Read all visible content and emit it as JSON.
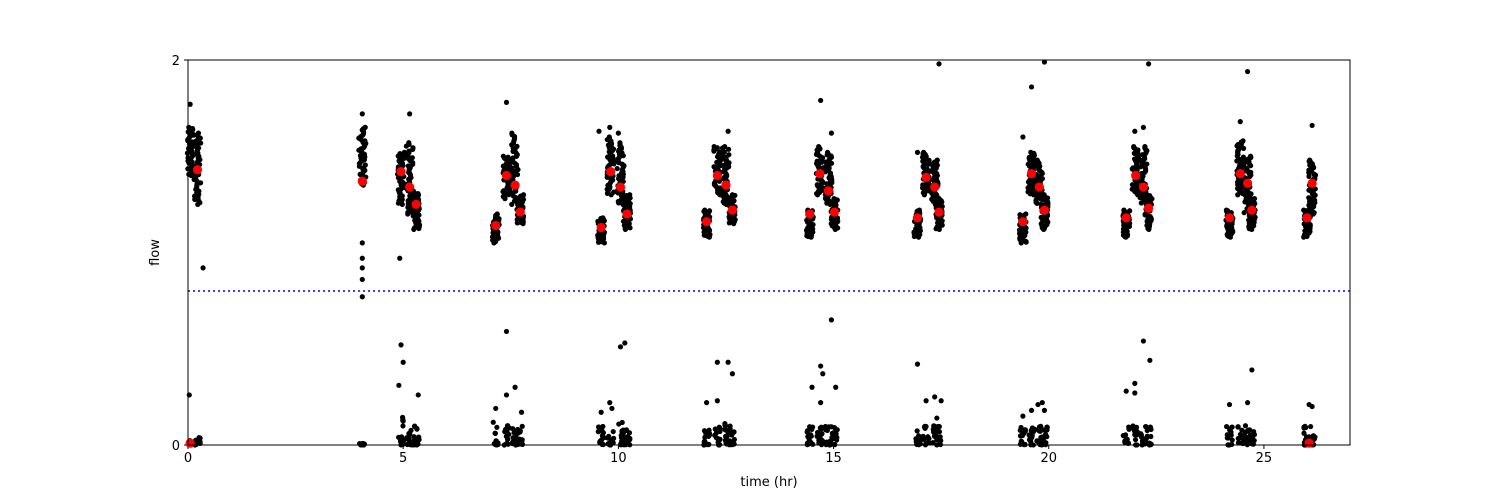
{
  "chart_data": {
    "type": "scatter",
    "title": "",
    "xlabel": "time (hr)",
    "ylabel": "flow",
    "xlim": [
      0,
      27
    ],
    "ylim": [
      0,
      2
    ],
    "x_ticks": [
      0,
      5,
      10,
      15,
      20,
      25
    ],
    "y_ticks": [
      0,
      2
    ],
    "grid": false,
    "legend": "none",
    "threshold_line": {
      "y": 0.8,
      "style": "dotted",
      "color": "#0000ff"
    },
    "colors": {
      "raw": "#000000",
      "mean": "#ff0000"
    },
    "series": [
      {
        "role": "raw",
        "color": "#000000",
        "clusters": [
          {
            "x": 0.05,
            "ymin": 1.4,
            "ymax": 1.65
          },
          {
            "x": 0.22,
            "ymin": 1.25,
            "ymax": 1.62
          },
          {
            "x": 4.05,
            "ymin": 1.35,
            "ymax": 1.65
          },
          {
            "x": 4.95,
            "ymin": 1.25,
            "ymax": 1.52
          },
          {
            "x": 5.15,
            "ymin": 1.2,
            "ymax": 1.57
          },
          {
            "x": 5.3,
            "ymin": 1.12,
            "ymax": 1.32
          },
          {
            "x": 7.15,
            "ymin": 1.05,
            "ymax": 1.2
          },
          {
            "x": 7.4,
            "ymin": 1.28,
            "ymax": 1.5
          },
          {
            "x": 7.6,
            "ymin": 1.25,
            "ymax": 1.62
          },
          {
            "x": 7.72,
            "ymin": 1.15,
            "ymax": 1.3
          },
          {
            "x": 9.6,
            "ymin": 1.05,
            "ymax": 1.18
          },
          {
            "x": 9.82,
            "ymin": 1.3,
            "ymax": 1.6
          },
          {
            "x": 10.05,
            "ymin": 1.25,
            "ymax": 1.57
          },
          {
            "x": 10.2,
            "ymin": 1.12,
            "ymax": 1.3
          },
          {
            "x": 12.05,
            "ymin": 1.08,
            "ymax": 1.22
          },
          {
            "x": 12.3,
            "ymin": 1.3,
            "ymax": 1.55
          },
          {
            "x": 12.5,
            "ymin": 1.25,
            "ymax": 1.55
          },
          {
            "x": 12.65,
            "ymin": 1.15,
            "ymax": 1.3
          },
          {
            "x": 14.45,
            "ymin": 1.08,
            "ymax": 1.22
          },
          {
            "x": 14.68,
            "ymin": 1.3,
            "ymax": 1.55
          },
          {
            "x": 14.88,
            "ymin": 1.25,
            "ymax": 1.52
          },
          {
            "x": 15.02,
            "ymin": 1.12,
            "ymax": 1.28
          },
          {
            "x": 16.95,
            "ymin": 1.08,
            "ymax": 1.22
          },
          {
            "x": 17.15,
            "ymin": 1.3,
            "ymax": 1.52
          },
          {
            "x": 17.35,
            "ymin": 1.25,
            "ymax": 1.48
          },
          {
            "x": 17.45,
            "ymin": 1.12,
            "ymax": 1.28
          },
          {
            "x": 19.4,
            "ymin": 1.05,
            "ymax": 1.2
          },
          {
            "x": 19.6,
            "ymin": 1.3,
            "ymax": 1.52
          },
          {
            "x": 19.78,
            "ymin": 1.25,
            "ymax": 1.48
          },
          {
            "x": 19.9,
            "ymin": 1.12,
            "ymax": 1.3
          },
          {
            "x": 21.8,
            "ymin": 1.08,
            "ymax": 1.22
          },
          {
            "x": 22.02,
            "ymin": 1.3,
            "ymax": 1.55
          },
          {
            "x": 22.2,
            "ymin": 1.25,
            "ymax": 1.55
          },
          {
            "x": 22.32,
            "ymin": 1.12,
            "ymax": 1.3
          },
          {
            "x": 24.2,
            "ymin": 1.08,
            "ymax": 1.22
          },
          {
            "x": 24.45,
            "ymin": 1.3,
            "ymax": 1.58
          },
          {
            "x": 24.62,
            "ymin": 1.2,
            "ymax": 1.5
          },
          {
            "x": 24.72,
            "ymin": 1.12,
            "ymax": 1.28
          },
          {
            "x": 26.0,
            "ymin": 1.08,
            "ymax": 1.22
          },
          {
            "x": 26.12,
            "ymin": 1.2,
            "ymax": 1.48
          }
        ],
        "outliers": [
          {
            "x": 0.05,
            "y": 1.77
          },
          {
            "x": 0.35,
            "y": 0.92
          },
          {
            "x": 0.03,
            "y": 0.26
          },
          {
            "x": 4.05,
            "y": 1.72
          },
          {
            "x": 4.05,
            "y": 1.05
          },
          {
            "x": 4.05,
            "y": 0.97
          },
          {
            "x": 4.05,
            "y": 0.92
          },
          {
            "x": 4.05,
            "y": 0.86
          },
          {
            "x": 4.05,
            "y": 0.77
          },
          {
            "x": 5.15,
            "y": 1.72
          },
          {
            "x": 4.92,
            "y": 0.97
          },
          {
            "x": 4.95,
            "y": 0.52
          },
          {
            "x": 5.0,
            "y": 0.43
          },
          {
            "x": 4.9,
            "y": 0.31
          },
          {
            "x": 5.35,
            "y": 0.26
          },
          {
            "x": 7.4,
            "y": 1.78
          },
          {
            "x": 7.4,
            "y": 0.59
          },
          {
            "x": 7.6,
            "y": 0.3
          },
          {
            "x": 7.4,
            "y": 0.26
          },
          {
            "x": 7.15,
            "y": 0.19
          },
          {
            "x": 7.75,
            "y": 0.17
          },
          {
            "x": 9.55,
            "y": 1.63
          },
          {
            "x": 9.8,
            "y": 1.65
          },
          {
            "x": 10.0,
            "y": 1.62
          },
          {
            "x": 10.05,
            "y": 0.51
          },
          {
            "x": 10.15,
            "y": 0.53
          },
          {
            "x": 9.8,
            "y": 0.22
          },
          {
            "x": 9.6,
            "y": 0.17
          },
          {
            "x": 9.85,
            "y": 0.19
          },
          {
            "x": 12.55,
            "y": 1.63
          },
          {
            "x": 12.3,
            "y": 0.43
          },
          {
            "x": 12.55,
            "y": 0.43
          },
          {
            "x": 12.65,
            "y": 0.37
          },
          {
            "x": 12.05,
            "y": 0.22
          },
          {
            "x": 12.3,
            "y": 0.23
          },
          {
            "x": 14.7,
            "y": 1.79
          },
          {
            "x": 14.95,
            "y": 1.62
          },
          {
            "x": 14.95,
            "y": 0.65
          },
          {
            "x": 14.7,
            "y": 0.41
          },
          {
            "x": 14.75,
            "y": 0.37
          },
          {
            "x": 14.5,
            "y": 0.3
          },
          {
            "x": 15.05,
            "y": 0.3
          },
          {
            "x": 14.7,
            "y": 0.22
          },
          {
            "x": 17.45,
            "y": 1.98
          },
          {
            "x": 16.95,
            "y": 1.52
          },
          {
            "x": 16.95,
            "y": 0.42
          },
          {
            "x": 17.35,
            "y": 0.25
          },
          {
            "x": 17.5,
            "y": 0.23
          },
          {
            "x": 17.15,
            "y": 0.23
          },
          {
            "x": 17.4,
            "y": 0.14
          },
          {
            "x": 19.9,
            "y": 2.0
          },
          {
            "x": 19.6,
            "y": 1.86
          },
          {
            "x": 19.4,
            "y": 1.6
          },
          {
            "x": 19.6,
            "y": 0.18
          },
          {
            "x": 19.85,
            "y": 0.22
          },
          {
            "x": 19.9,
            "y": 0.18
          },
          {
            "x": 19.75,
            "y": 0.21
          },
          {
            "x": 19.4,
            "y": 0.15
          },
          {
            "x": 22.32,
            "y": 1.98
          },
          {
            "x": 22.0,
            "y": 1.63
          },
          {
            "x": 22.2,
            "y": 1.65
          },
          {
            "x": 22.2,
            "y": 0.54
          },
          {
            "x": 22.35,
            "y": 0.44
          },
          {
            "x": 22.0,
            "y": 0.32
          },
          {
            "x": 21.8,
            "y": 0.28
          },
          {
            "x": 22.0,
            "y": 0.27
          },
          {
            "x": 24.62,
            "y": 1.94
          },
          {
            "x": 24.45,
            "y": 1.68
          },
          {
            "x": 24.72,
            "y": 0.39
          },
          {
            "x": 24.62,
            "y": 0.22
          },
          {
            "x": 24.2,
            "y": 0.21
          },
          {
            "x": 26.12,
            "y": 1.66
          },
          {
            "x": 26.05,
            "y": 0.21
          },
          {
            "x": 26.12,
            "y": 0.2
          }
        ],
        "baseline_clusters": [
          {
            "x": 0.05,
            "ymin": 0.0,
            "ymax": 0.03
          },
          {
            "x": 0.22,
            "ymin": 0.0,
            "ymax": 0.04
          },
          {
            "x": 4.05,
            "ymin": 0.0,
            "ymax": 0.01
          },
          {
            "x": 4.95,
            "ymin": 0.0,
            "ymax": 0.15
          },
          {
            "x": 5.15,
            "ymin": 0.0,
            "ymax": 0.1
          },
          {
            "x": 5.3,
            "ymin": 0.0,
            "ymax": 0.1
          },
          {
            "x": 7.15,
            "ymin": 0.0,
            "ymax": 0.12
          },
          {
            "x": 7.4,
            "ymin": 0.0,
            "ymax": 0.12
          },
          {
            "x": 7.6,
            "ymin": 0.0,
            "ymax": 0.1
          },
          {
            "x": 7.72,
            "ymin": 0.0,
            "ymax": 0.1
          },
          {
            "x": 9.6,
            "ymin": 0.0,
            "ymax": 0.1
          },
          {
            "x": 9.82,
            "ymin": 0.0,
            "ymax": 0.1
          },
          {
            "x": 10.05,
            "ymin": 0.0,
            "ymax": 0.12
          },
          {
            "x": 10.2,
            "ymin": 0.0,
            "ymax": 0.1
          },
          {
            "x": 12.05,
            "ymin": 0.0,
            "ymax": 0.1
          },
          {
            "x": 12.3,
            "ymin": 0.0,
            "ymax": 0.1
          },
          {
            "x": 12.5,
            "ymin": 0.0,
            "ymax": 0.12
          },
          {
            "x": 12.65,
            "ymin": 0.0,
            "ymax": 0.1
          },
          {
            "x": 14.45,
            "ymin": 0.0,
            "ymax": 0.1
          },
          {
            "x": 14.68,
            "ymin": 0.0,
            "ymax": 0.1
          },
          {
            "x": 14.88,
            "ymin": 0.0,
            "ymax": 0.1
          },
          {
            "x": 15.02,
            "ymin": 0.0,
            "ymax": 0.1
          },
          {
            "x": 16.95,
            "ymin": 0.0,
            "ymax": 0.1
          },
          {
            "x": 17.15,
            "ymin": 0.0,
            "ymax": 0.1
          },
          {
            "x": 17.35,
            "ymin": 0.0,
            "ymax": 0.1
          },
          {
            "x": 17.45,
            "ymin": 0.0,
            "ymax": 0.1
          },
          {
            "x": 19.4,
            "ymin": 0.0,
            "ymax": 0.1
          },
          {
            "x": 19.6,
            "ymin": 0.0,
            "ymax": 0.1
          },
          {
            "x": 19.78,
            "ymin": 0.0,
            "ymax": 0.1
          },
          {
            "x": 19.9,
            "ymin": 0.0,
            "ymax": 0.1
          },
          {
            "x": 21.8,
            "ymin": 0.0,
            "ymax": 0.1
          },
          {
            "x": 22.02,
            "ymin": 0.0,
            "ymax": 0.1
          },
          {
            "x": 22.2,
            "ymin": 0.0,
            "ymax": 0.1
          },
          {
            "x": 22.32,
            "ymin": 0.0,
            "ymax": 0.1
          },
          {
            "x": 24.2,
            "ymin": 0.0,
            "ymax": 0.1
          },
          {
            "x": 24.45,
            "ymin": 0.0,
            "ymax": 0.1
          },
          {
            "x": 24.62,
            "ymin": 0.0,
            "ymax": 0.1
          },
          {
            "x": 24.72,
            "ymin": 0.0,
            "ymax": 0.1
          },
          {
            "x": 26.0,
            "ymin": 0.0,
            "ymax": 0.1
          },
          {
            "x": 26.12,
            "ymin": 0.0,
            "ymax": 0.1
          }
        ]
      },
      {
        "role": "mean",
        "color": "#ff0000",
        "points": [
          {
            "x": 0.22,
            "y": 1.43
          },
          {
            "x": 4.05,
            "y": 1.37
          },
          {
            "x": 4.95,
            "y": 1.42
          },
          {
            "x": 5.15,
            "y": 1.34
          },
          {
            "x": 5.3,
            "y": 1.25
          },
          {
            "x": 7.15,
            "y": 1.14
          },
          {
            "x": 7.4,
            "y": 1.4
          },
          {
            "x": 7.6,
            "y": 1.35
          },
          {
            "x": 7.72,
            "y": 1.21
          },
          {
            "x": 9.6,
            "y": 1.13
          },
          {
            "x": 9.82,
            "y": 1.42
          },
          {
            "x": 10.05,
            "y": 1.34
          },
          {
            "x": 10.2,
            "y": 1.2
          },
          {
            "x": 12.05,
            "y": 1.16
          },
          {
            "x": 12.3,
            "y": 1.4
          },
          {
            "x": 12.5,
            "y": 1.35
          },
          {
            "x": 12.65,
            "y": 1.22
          },
          {
            "x": 14.45,
            "y": 1.2
          },
          {
            "x": 14.68,
            "y": 1.41
          },
          {
            "x": 14.88,
            "y": 1.32
          },
          {
            "x": 15.02,
            "y": 1.21
          },
          {
            "x": 16.95,
            "y": 1.18
          },
          {
            "x": 17.15,
            "y": 1.39
          },
          {
            "x": 17.35,
            "y": 1.34
          },
          {
            "x": 17.45,
            "y": 1.21
          },
          {
            "x": 19.4,
            "y": 1.16
          },
          {
            "x": 19.6,
            "y": 1.41
          },
          {
            "x": 19.78,
            "y": 1.34
          },
          {
            "x": 19.9,
            "y": 1.22
          },
          {
            "x": 21.8,
            "y": 1.18
          },
          {
            "x": 22.02,
            "y": 1.4
          },
          {
            "x": 22.2,
            "y": 1.34
          },
          {
            "x": 22.32,
            "y": 1.23
          },
          {
            "x": 24.2,
            "y": 1.18
          },
          {
            "x": 24.45,
            "y": 1.41
          },
          {
            "x": 24.62,
            "y": 1.36
          },
          {
            "x": 24.72,
            "y": 1.22
          },
          {
            "x": 26.0,
            "y": 1.18
          },
          {
            "x": 26.12,
            "y": 1.36
          },
          {
            "x": 0.05,
            "y": 0.01
          },
          {
            "x": 26.05,
            "y": 0.01
          }
        ]
      }
    ]
  }
}
